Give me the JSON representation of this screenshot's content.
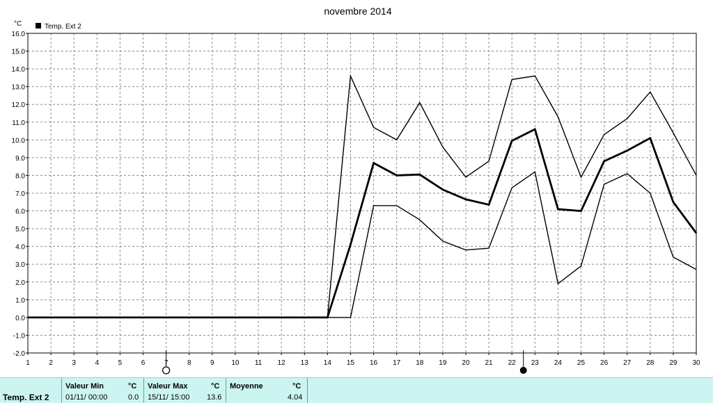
{
  "chart_data": {
    "type": "line",
    "title": "novembre 2014",
    "ylabel": "°C",
    "xlabel": "",
    "legend": {
      "label": "Temp. Ext 2",
      "placement": "top-left"
    },
    "ylim": [
      -2.0,
      16.0
    ],
    "xlim": [
      1,
      30
    ],
    "x_ticks": [
      1,
      2,
      3,
      4,
      5,
      6,
      7,
      8,
      9,
      10,
      11,
      12,
      13,
      14,
      15,
      16,
      17,
      18,
      19,
      20,
      21,
      22,
      23,
      24,
      25,
      26,
      27,
      28,
      29,
      30
    ],
    "y_ticks": [
      "-2.0",
      "-1.0",
      "0.0",
      "1.0",
      "2.0",
      "3.0",
      "4.0",
      "5.0",
      "6.0",
      "7.0",
      "8.0",
      "9.0",
      "10.0",
      "11.0",
      "12.0",
      "13.0",
      "14.0",
      "15.0",
      "16.0"
    ],
    "grid": true,
    "line_color": "#000000",
    "series": [
      {
        "role": "max",
        "x": [
          1,
          14,
          15,
          16,
          17,
          18,
          19,
          20,
          21,
          22,
          23,
          24,
          25,
          26,
          27,
          28,
          29,
          30
        ],
        "values": [
          0.0,
          0.0,
          13.6,
          10.7,
          10.0,
          12.1,
          9.6,
          7.9,
          8.8,
          13.4,
          13.6,
          11.3,
          7.9,
          10.3,
          11.2,
          12.7,
          10.4,
          8.0
        ]
      },
      {
        "role": "mean",
        "x": [
          1,
          14,
          15,
          16,
          17,
          18,
          19,
          20,
          21,
          22,
          23,
          24,
          25,
          26,
          27,
          28,
          29,
          30
        ],
        "values": [
          0.0,
          0.0,
          4.1,
          8.7,
          8.0,
          8.05,
          7.2,
          6.65,
          6.35,
          9.95,
          10.6,
          6.1,
          6.0,
          8.8,
          9.4,
          10.1,
          6.5,
          4.75
        ]
      },
      {
        "role": "min",
        "x": [
          1,
          15,
          16,
          17,
          18,
          19,
          20,
          21,
          22,
          23,
          24,
          25,
          26,
          27,
          28,
          29,
          30
        ],
        "values": [
          0.0,
          0.0,
          6.3,
          6.3,
          5.5,
          4.3,
          3.8,
          3.9,
          7.3,
          8.2,
          1.9,
          2.9,
          7.5,
          8.1,
          7.0,
          3.4,
          2.7
        ]
      }
    ],
    "markers": [
      {
        "symbol": "open-circle",
        "x": 7
      },
      {
        "symbol": "filled-circle",
        "x": 22.5
      }
    ]
  },
  "footer": {
    "sensor": "Temp. Ext 2",
    "min": {
      "label": "Valeur Min",
      "unit": "°C",
      "datetime": "01/11/  00:00",
      "value": "0.0"
    },
    "max": {
      "label": "Valeur Max",
      "unit": "°C",
      "datetime": "15/11/  15:00",
      "value": "13.6"
    },
    "avg": {
      "label": "Moyenne",
      "unit": "°C",
      "value": "4.04"
    }
  }
}
